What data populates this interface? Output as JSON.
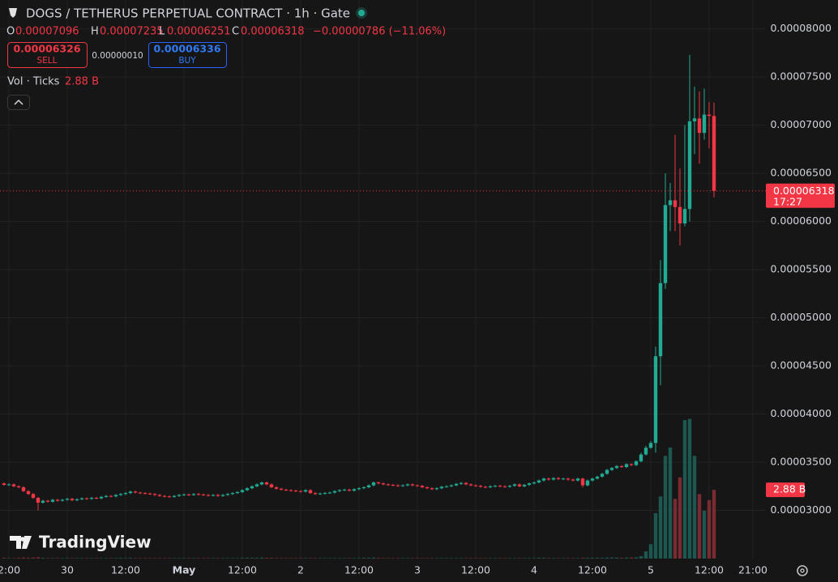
{
  "chart_data": {
    "type": "candlestick",
    "title": "DOGS / TETHERUS PERPETUAL CONTRACT · 1h · Gate",
    "ohlc_labels": [
      "O",
      "H",
      "L",
      "C"
    ],
    "change": "−0.00000786 (−11.06%)",
    "last_price_time": "17:27",
    "volume_title": "Vol · Ticks",
    "volume_label": "2.88 B",
    "up_color": "#22ab94",
    "down_color": "#f23645",
    "volume_up_color": "#1d5850",
    "volume_down_color": "#7a2a31",
    "grid": true,
    "xlim": [
      -0.83,
      156.67
    ],
    "xticks": [
      {
        "value": 1,
        "label": "2:00"
      },
      {
        "value": 13,
        "label": "30"
      },
      {
        "value": 25,
        "label": "12:00"
      },
      {
        "value": 37,
        "label": "May"
      },
      {
        "value": 49,
        "label": "12:00"
      },
      {
        "value": 61,
        "label": "2"
      },
      {
        "value": 73,
        "label": "12:00"
      },
      {
        "value": 85,
        "label": "3"
      },
      {
        "value": 97,
        "label": "12:00"
      },
      {
        "value": 109,
        "label": "4"
      },
      {
        "value": 121,
        "label": "12:00"
      },
      {
        "value": 133,
        "label": "5"
      },
      {
        "value": 145,
        "label": "12:00"
      },
      {
        "value": 154,
        "label": "21:00"
      }
    ],
    "ylim": [
      2.5e-05,
      8.3e-05
    ],
    "yticks": [
      {
        "value": 3e-05,
        "label": "0.00003000"
      },
      {
        "value": 3.5e-05,
        "label": "0.00003500"
      },
      {
        "value": 4e-05,
        "label": "0.00004000"
      },
      {
        "value": 4.5e-05,
        "label": "0.00004500"
      },
      {
        "value": 5e-05,
        "label": "0.00005000"
      },
      {
        "value": 5.5e-05,
        "label": "0.00005500"
      },
      {
        "value": 6e-05,
        "label": "0.00006000"
      },
      {
        "value": 6.5e-05,
        "label": "0.00006500"
      },
      {
        "value": 7e-05,
        "label": "0.00007000"
      },
      {
        "value": 7.5e-05,
        "label": "0.00007500"
      },
      {
        "value": 8e-05,
        "label": "0.00008000"
      }
    ],
    "vlim": [
      0,
      23.4
    ],
    "open": [
      3.28e-05,
      3.265e-05,
      3.27e-05,
      3.25e-05,
      3.24e-05,
      3.2e-05,
      3.17e-05,
      3.13e-05,
      3.08e-05,
      3.1e-05,
      3.09e-05,
      3.11e-05,
      3.1e-05,
      3.11e-05,
      3.12e-05,
      3.105e-05,
      3.115e-05,
      3.125e-05,
      3.12e-05,
      3.13e-05,
      3.125e-05,
      3.14e-05,
      3.15e-05,
      3.145e-05,
      3.16e-05,
      3.17e-05,
      3.18e-05,
      3.195e-05,
      3.185e-05,
      3.18e-05,
      3.175e-05,
      3.17e-05,
      3.16e-05,
      3.15e-05,
      3.145e-05,
      3.14e-05,
      3.15e-05,
      3.16e-05,
      3.165e-05,
      3.16e-05,
      3.17e-05,
      3.165e-05,
      3.16e-05,
      3.155e-05,
      3.16e-05,
      3.15e-05,
      3.16e-05,
      3.17e-05,
      3.18e-05,
      3.19e-05,
      3.21e-05,
      3.23e-05,
      3.25e-05,
      3.27e-05,
      3.29e-05,
      3.27e-05,
      3.24e-05,
      3.225e-05,
      3.215e-05,
      3.21e-05,
      3.205e-05,
      3.2e-05,
      3.195e-05,
      3.21e-05,
      3.18e-05,
      3.17e-05,
      3.175e-05,
      3.18e-05,
      3.185e-05,
      3.2e-05,
      3.21e-05,
      3.215e-05,
      3.205e-05,
      3.22e-05,
      3.23e-05,
      3.24e-05,
      3.26e-05,
      3.29e-05,
      3.28e-05,
      3.27e-05,
      3.265e-05,
      3.26e-05,
      3.255e-05,
      3.26e-05,
      3.27e-05,
      3.26e-05,
      3.255e-05,
      3.24e-05,
      3.23e-05,
      3.22e-05,
      3.23e-05,
      3.245e-05,
      3.25e-05,
      3.26e-05,
      3.275e-05,
      3.285e-05,
      3.27e-05,
      3.26e-05,
      3.255e-05,
      3.245e-05,
      3.24e-05,
      3.25e-05,
      3.255e-05,
      3.25e-05,
      3.245e-05,
      3.255e-05,
      3.27e-05,
      3.25e-05,
      3.265e-05,
      3.28e-05,
      3.29e-05,
      3.31e-05,
      3.33e-05,
      3.32e-05,
      3.335e-05,
      3.325e-05,
      3.33e-05,
      3.32e-05,
      3.31e-05,
      3.33e-05,
      3.26e-05,
      3.31e-05,
      3.33e-05,
      3.35e-05,
      3.38e-05,
      3.42e-05,
      3.44e-05,
      3.46e-05,
      3.45e-05,
      3.48e-05,
      3.47e-05,
      3.51e-05,
      3.58e-05,
      3.65e-05,
      3.7e-05,
      4.6e-05,
      5.36e-05,
      6.17e-05,
      6.22e-05,
      6.15e-05,
      5.98e-05,
      6.13e-05,
      7.04e-05,
      7.07e-05,
      6.92e-05,
      7.11e-05,
      7.096e-05
    ],
    "high": [
      3.29e-05,
      3.28e-05,
      3.28e-05,
      3.26e-05,
      3.25e-05,
      3.21e-05,
      3.18e-05,
      3.14e-05,
      3.11e-05,
      3.11e-05,
      3.12e-05,
      3.12e-05,
      3.12e-05,
      3.13e-05,
      3.13e-05,
      3.125e-05,
      3.135e-05,
      3.135e-05,
      3.14e-05,
      3.14e-05,
      3.15e-05,
      3.16e-05,
      3.16e-05,
      3.17e-05,
      3.18e-05,
      3.19e-05,
      3.205e-05,
      3.205e-05,
      3.195e-05,
      3.19e-05,
      3.185e-05,
      3.18e-05,
      3.17e-05,
      3.16e-05,
      3.155e-05,
      3.16e-05,
      3.17e-05,
      3.175e-05,
      3.175e-05,
      3.18e-05,
      3.18e-05,
      3.175e-05,
      3.17e-05,
      3.17e-05,
      3.17e-05,
      3.17e-05,
      3.18e-05,
      3.19e-05,
      3.2e-05,
      3.22e-05,
      3.24e-05,
      3.26e-05,
      3.28e-05,
      3.3e-05,
      3.3e-05,
      3.28e-05,
      3.25e-05,
      3.235e-05,
      3.225e-05,
      3.22e-05,
      3.215e-05,
      3.21e-05,
      3.22e-05,
      3.22e-05,
      3.19e-05,
      3.185e-05,
      3.19e-05,
      3.195e-05,
      3.21e-05,
      3.22e-05,
      3.225e-05,
      3.225e-05,
      3.23e-05,
      3.24e-05,
      3.25e-05,
      3.27e-05,
      3.3e-05,
      3.3e-05,
      3.29e-05,
      3.28e-05,
      3.275e-05,
      3.27e-05,
      3.27e-05,
      3.28e-05,
      3.28e-05,
      3.27e-05,
      3.265e-05,
      3.25e-05,
      3.24e-05,
      3.24e-05,
      3.255e-05,
      3.26e-05,
      3.27e-05,
      3.285e-05,
      3.295e-05,
      3.295e-05,
      3.28e-05,
      3.27e-05,
      3.265e-05,
      3.255e-05,
      3.26e-05,
      3.265e-05,
      3.265e-05,
      3.26e-05,
      3.265e-05,
      3.28e-05,
      3.28e-05,
      3.275e-05,
      3.29e-05,
      3.3e-05,
      3.32e-05,
      3.34e-05,
      3.34e-05,
      3.345e-05,
      3.345e-05,
      3.34e-05,
      3.34e-05,
      3.33e-05,
      3.34e-05,
      3.34e-05,
      3.32e-05,
      3.34e-05,
      3.36e-05,
      3.39e-05,
      3.43e-05,
      3.45e-05,
      3.47e-05,
      3.47e-05,
      3.49e-05,
      3.49e-05,
      3.52e-05,
      3.6e-05,
      3.67e-05,
      3.72e-05,
      4.7e-05,
      5.6e-05,
      6.5e-05,
      6.4e-05,
      6.9e-05,
      6.55e-05,
      7e-05,
      7.731e-05,
      7.4e-05,
      7.35e-05,
      7.38e-05,
      7.24e-05,
      7.235e-05
    ],
    "low": [
      3.255e-05,
      3.255e-05,
      3.24e-05,
      3.23e-05,
      3.19e-05,
      3.16e-05,
      3.12e-05,
      3e-05,
      3.07e-05,
      3.08e-05,
      3.08e-05,
      3.09e-05,
      3.09e-05,
      3.1e-05,
      3.095e-05,
      3.095e-05,
      3.105e-05,
      3.11e-05,
      3.11e-05,
      3.115e-05,
      3.115e-05,
      3.13e-05,
      3.135e-05,
      3.135e-05,
      3.15e-05,
      3.16e-05,
      3.17e-05,
      3.175e-05,
      3.17e-05,
      3.165e-05,
      3.16e-05,
      3.15e-05,
      3.14e-05,
      3.135e-05,
      3.13e-05,
      3.13e-05,
      3.14e-05,
      3.15e-05,
      3.15e-05,
      3.15e-05,
      3.155e-05,
      3.15e-05,
      3.145e-05,
      3.145e-05,
      3.14e-05,
      3.14e-05,
      3.15e-05,
      3.16e-05,
      3.17e-05,
      3.18e-05,
      3.2e-05,
      3.22e-05,
      3.24e-05,
      3.26e-05,
      3.26e-05,
      3.23e-05,
      3.215e-05,
      3.205e-05,
      3.2e-05,
      3.195e-05,
      3.19e-05,
      3.185e-05,
      3.185e-05,
      3.17e-05,
      3.16e-05,
      3.16e-05,
      3.165e-05,
      3.17e-05,
      3.175e-05,
      3.19e-05,
      3.2e-05,
      3.195e-05,
      3.195e-05,
      3.21e-05,
      3.22e-05,
      3.23e-05,
      3.25e-05,
      3.27e-05,
      3.26e-05,
      3.255e-05,
      3.25e-05,
      3.245e-05,
      3.245e-05,
      3.25e-05,
      3.25e-05,
      3.245e-05,
      3.23e-05,
      3.22e-05,
      3.21e-05,
      3.21e-05,
      3.22e-05,
      3.235e-05,
      3.24e-05,
      3.25e-05,
      3.265e-05,
      3.26e-05,
      3.25e-05,
      3.245e-05,
      3.235e-05,
      3.23e-05,
      3.23e-05,
      3.24e-05,
      3.24e-05,
      3.235e-05,
      3.235e-05,
      3.245e-05,
      3.24e-05,
      3.24e-05,
      3.255e-05,
      3.27e-05,
      3.28e-05,
      3.3e-05,
      3.31e-05,
      3.31e-05,
      3.315e-05,
      3.315e-05,
      3.31e-05,
      3.3e-05,
      3.3e-05,
      3.24e-05,
      3.25e-05,
      3.3e-05,
      3.32e-05,
      3.34e-05,
      3.37e-05,
      3.41e-05,
      3.43e-05,
      3.44e-05,
      3.44e-05,
      3.46e-05,
      3.46e-05,
      3.5e-05,
      3.57e-05,
      3.64e-05,
      3.6e-05,
      4.3e-05,
      5.3e-05,
      5.9e-05,
      5.9e-05,
      5.75e-05,
      5.95e-05,
      6e-05,
      6.7e-05,
      6.6e-05,
      6.85e-05,
      6.76e-05,
      6.251e-05
    ],
    "close": [
      3.265e-05,
      3.27e-05,
      3.25e-05,
      3.24e-05,
      3.2e-05,
      3.17e-05,
      3.13e-05,
      3.08e-05,
      3.1e-05,
      3.09e-05,
      3.11e-05,
      3.1e-05,
      3.11e-05,
      3.12e-05,
      3.105e-05,
      3.115e-05,
      3.125e-05,
      3.12e-05,
      3.13e-05,
      3.125e-05,
      3.14e-05,
      3.15e-05,
      3.145e-05,
      3.16e-05,
      3.17e-05,
      3.18e-05,
      3.195e-05,
      3.185e-05,
      3.18e-05,
      3.175e-05,
      3.17e-05,
      3.16e-05,
      3.15e-05,
      3.145e-05,
      3.14e-05,
      3.15e-05,
      3.16e-05,
      3.165e-05,
      3.16e-05,
      3.17e-05,
      3.165e-05,
      3.16e-05,
      3.155e-05,
      3.16e-05,
      3.15e-05,
      3.16e-05,
      3.17e-05,
      3.18e-05,
      3.19e-05,
      3.21e-05,
      3.23e-05,
      3.25e-05,
      3.27e-05,
      3.29e-05,
      3.27e-05,
      3.24e-05,
      3.225e-05,
      3.215e-05,
      3.21e-05,
      3.205e-05,
      3.2e-05,
      3.195e-05,
      3.21e-05,
      3.18e-05,
      3.17e-05,
      3.175e-05,
      3.18e-05,
      3.185e-05,
      3.2e-05,
      3.21e-05,
      3.215e-05,
      3.205e-05,
      3.22e-05,
      3.23e-05,
      3.24e-05,
      3.26e-05,
      3.29e-05,
      3.28e-05,
      3.27e-05,
      3.265e-05,
      3.26e-05,
      3.255e-05,
      3.26e-05,
      3.27e-05,
      3.26e-05,
      3.255e-05,
      3.24e-05,
      3.23e-05,
      3.22e-05,
      3.23e-05,
      3.245e-05,
      3.25e-05,
      3.26e-05,
      3.275e-05,
      3.285e-05,
      3.27e-05,
      3.26e-05,
      3.255e-05,
      3.245e-05,
      3.24e-05,
      3.25e-05,
      3.255e-05,
      3.25e-05,
      3.245e-05,
      3.255e-05,
      3.27e-05,
      3.25e-05,
      3.265e-05,
      3.28e-05,
      3.29e-05,
      3.31e-05,
      3.33e-05,
      3.32e-05,
      3.335e-05,
      3.325e-05,
      3.33e-05,
      3.32e-05,
      3.31e-05,
      3.33e-05,
      3.26e-05,
      3.31e-05,
      3.33e-05,
      3.35e-05,
      3.38e-05,
      3.42e-05,
      3.44e-05,
      3.46e-05,
      3.45e-05,
      3.48e-05,
      3.47e-05,
      3.51e-05,
      3.58e-05,
      3.65e-05,
      3.7e-05,
      4.6e-05,
      5.36e-05,
      6.17e-05,
      6.22e-05,
      6.15e-05,
      5.98e-05,
      6.13e-05,
      7.04e-05,
      7.07e-05,
      6.92e-05,
      7.11e-05,
      7.096e-05,
      6.318e-05
    ],
    "volume": [
      0.03,
      0.02,
      0.02,
      0.03,
      0.04,
      0.03,
      0.04,
      0.05,
      0.03,
      0.02,
      0.02,
      0.02,
      0.02,
      0.02,
      0.02,
      0.02,
      0.02,
      0.02,
      0.02,
      0.02,
      0.02,
      0.02,
      0.02,
      0.02,
      0.03,
      0.02,
      0.03,
      0.02,
      0.02,
      0.02,
      0.02,
      0.02,
      0.02,
      0.02,
      0.02,
      0.02,
      0.02,
      0.02,
      0.02,
      0.02,
      0.02,
      0.02,
      0.02,
      0.02,
      0.02,
      0.02,
      0.02,
      0.02,
      0.02,
      0.03,
      0.03,
      0.03,
      0.03,
      0.04,
      0.03,
      0.03,
      0.02,
      0.02,
      0.02,
      0.02,
      0.02,
      0.02,
      0.02,
      0.02,
      0.02,
      0.02,
      0.02,
      0.02,
      0.02,
      0.02,
      0.02,
      0.02,
      0.02,
      0.02,
      0.03,
      0.03,
      0.04,
      0.03,
      0.02,
      0.02,
      0.02,
      0.02,
      0.02,
      0.02,
      0.02,
      0.02,
      0.02,
      0.02,
      0.02,
      0.02,
      0.02,
      0.02,
      0.02,
      0.02,
      0.02,
      0.02,
      0.02,
      0.02,
      0.02,
      0.02,
      0.02,
      0.02,
      0.02,
      0.02,
      0.02,
      0.02,
      0.02,
      0.02,
      0.02,
      0.02,
      0.03,
      0.03,
      0.02,
      0.02,
      0.02,
      0.02,
      0.02,
      0.02,
      0.02,
      0.03,
      0.03,
      0.03,
      0.03,
      0.03,
      0.04,
      0.04,
      0.04,
      0.03,
      0.04,
      0.04,
      0.05,
      0.1,
      0.3,
      0.6,
      1.9,
      2.6,
      4.3,
      4.65,
      2.5,
      3.4,
      5.8,
      5.85,
      4.3,
      2.7,
      2.0,
      2.45,
      2.88
    ]
  },
  "ui": {
    "sell_price": "0.00006326",
    "sell": "SELL",
    "spread": "0.00000010",
    "buy_price": "0.00006336",
    "buy": "BUY",
    "logo": "TradingView"
  }
}
